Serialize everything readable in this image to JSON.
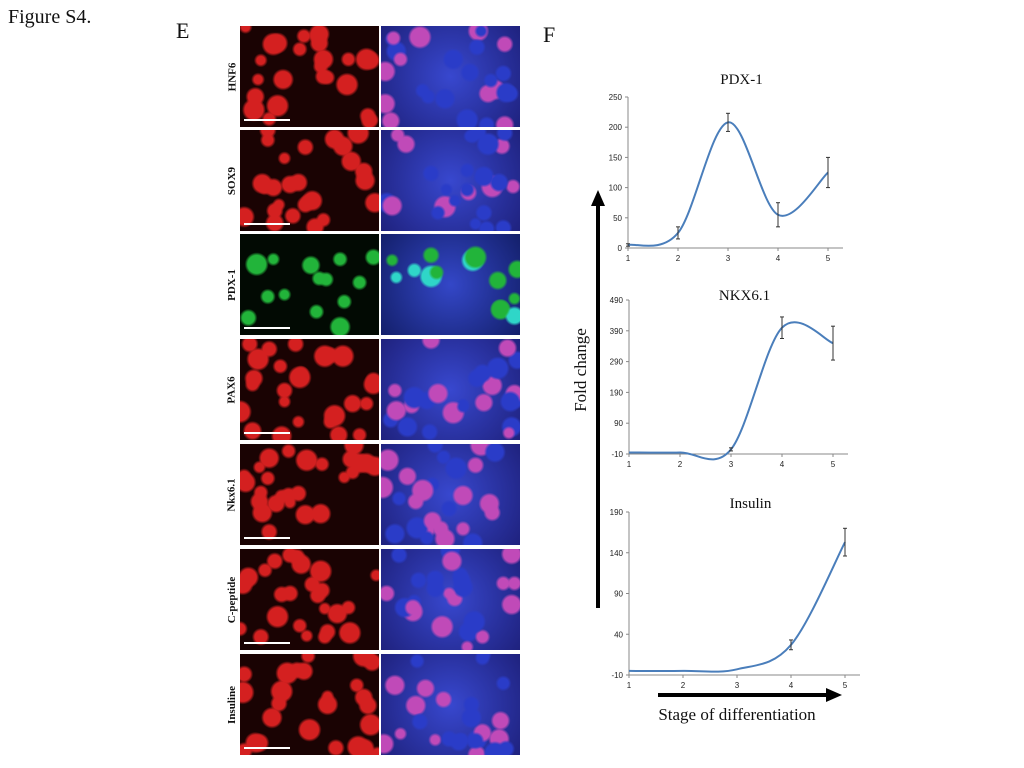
{
  "figure_title": "Figure S4.",
  "panel_e": {
    "letter": "E",
    "rows": [
      {
        "label": "HNF6",
        "stain": "red"
      },
      {
        "label": "SOX9",
        "stain": "red"
      },
      {
        "label": "PDX-1",
        "stain": "green"
      },
      {
        "label": "PAX6",
        "stain": "red"
      },
      {
        "label": "Nkx6.1",
        "stain": "red"
      },
      {
        "label": "C-peptide",
        "stain": "red"
      },
      {
        "label": "Insuline",
        "stain": "red"
      }
    ]
  },
  "panel_f": {
    "letter": "F",
    "ylabel": "Fold change",
    "xlabel": "Stage of differentiation"
  },
  "colors": {
    "line": "#4a7ebb",
    "red_stain": "#d42020",
    "green_stain": "#22b43a",
    "merge_blue": "#2a3cc8"
  },
  "chart_data": [
    {
      "type": "line",
      "title": "PDX-1",
      "x": [
        1,
        2,
        3,
        4,
        5
      ],
      "series": [
        {
          "values": [
            5,
            25,
            208,
            55,
            125
          ],
          "error": [
            2,
            10,
            15,
            20,
            25
          ]
        }
      ],
      "ylim": [
        0,
        250
      ],
      "yticks": [
        0,
        50,
        100,
        150,
        200,
        250
      ]
    },
    {
      "type": "line",
      "title": "NKX6.1",
      "x": [
        1,
        2,
        3,
        4,
        5
      ],
      "series": [
        {
          "values": [
            -5,
            -5,
            5,
            400,
            350
          ],
          "error": [
            0,
            0,
            5,
            35,
            55
          ]
        }
      ],
      "ylim": [
        -10,
        490
      ],
      "yticks": [
        -10,
        90,
        190,
        290,
        390,
        490
      ]
    },
    {
      "type": "line",
      "title": "Insulin",
      "x": [
        1,
        2,
        3,
        4,
        5
      ],
      "series": [
        {
          "values": [
            -5,
            -5,
            -3,
            27,
            153
          ],
          "error": [
            0,
            0,
            0,
            6,
            17
          ]
        }
      ],
      "ylim": [
        -10,
        190
      ],
      "yticks": [
        -10,
        40,
        90,
        140,
        190
      ]
    }
  ]
}
